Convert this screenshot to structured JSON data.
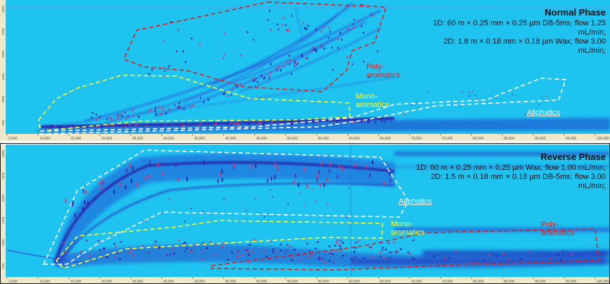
{
  "panels": [
    {
      "id": "top",
      "title": "Normal Phase",
      "conditions": [
        "1D: 60 m × 0.25 mm × 0.25 µm DB-5ms; flow 1.25",
        "mL/min;",
        "2D: 1.8 m × 0.18 mm × 0.18 µm Wax; flow 3.00",
        "mL/min;"
      ],
      "labels": {
        "poly": [
          "Poly-",
          "aromatics"
        ],
        "mono": [
          "Mono-",
          "aromatics"
        ],
        "aliphatics": "Aliphatics"
      },
      "label_colors": {
        "poly": "#e41a1c",
        "mono": "#ffff33",
        "aliphatics": "#ffffff"
      },
      "x_ticks": [
        "3,000",
        "10,000",
        "15,000",
        "20,000",
        "25,000",
        "30,000",
        "35,000",
        "40,000",
        "45,000",
        "50,000",
        "55,000",
        "60,000",
        "65,000",
        "70,000",
        "75,000",
        "80,000",
        "85,000",
        "90,000",
        "95,000",
        "100,000"
      ],
      "y_ticks": [
        "3000",
        "2500",
        "2000",
        "1500",
        "1000",
        "500"
      ]
    },
    {
      "id": "bottom",
      "title": "Reverse Phase",
      "conditions": [
        "1D: 60 m × 0.25 mm × 0.25 µm Wax; flow 1.00 mL/min;",
        "2D: 1.5 m × 0.18 mm × 0.18 µm DB-5ms; flow 3.00",
        "mL/min;"
      ],
      "labels": {
        "poly": [
          "Poly-",
          "aromatics"
        ],
        "mono": [
          "Mono-",
          "aromatics"
        ],
        "aliphatics": "Aliphatics"
      },
      "label_colors": {
        "poly": "#e41a1c",
        "mono": "#ffff33",
        "aliphatics": "#ffffff"
      },
      "x_ticks": [
        "3,000",
        "10,000",
        "15,000",
        "20,000",
        "25,000",
        "30,000",
        "35,000",
        "40,000",
        "45,000",
        "50,000",
        "55,000",
        "60,000",
        "65,000",
        "70,000",
        "75,000",
        "80,000",
        "85,000",
        "90,000",
        "95,000",
        "100,000"
      ],
      "y_ticks": [
        "3000",
        "2500",
        "2000",
        "1500",
        "1000",
        "500"
      ]
    }
  ],
  "colors": {
    "background": "#1ec3f0",
    "band": "#1c3cc8",
    "hot": "#e0306a",
    "axis": "#f0e8c8"
  }
}
